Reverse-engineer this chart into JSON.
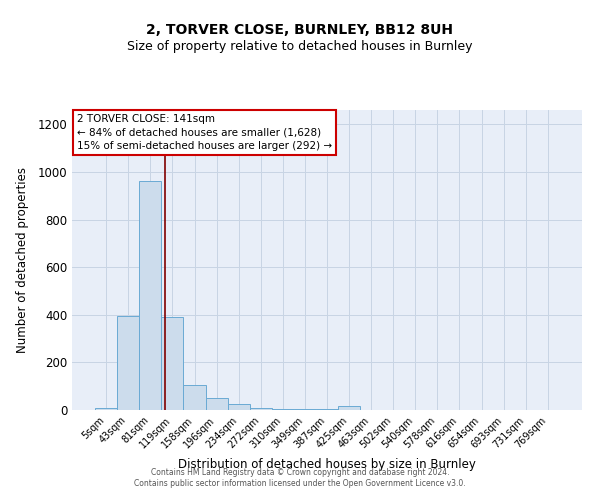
{
  "title": "2, TORVER CLOSE, BURNLEY, BB12 8UH",
  "subtitle": "Size of property relative to detached houses in Burnley",
  "xlabel": "Distribution of detached houses by size in Burnley",
  "ylabel": "Number of detached properties",
  "categories": [
    "5sqm",
    "43sqm",
    "81sqm",
    "119sqm",
    "158sqm",
    "196sqm",
    "234sqm",
    "272sqm",
    "310sqm",
    "349sqm",
    "387sqm",
    "425sqm",
    "463sqm",
    "502sqm",
    "540sqm",
    "578sqm",
    "616sqm",
    "654sqm",
    "693sqm",
    "731sqm",
    "769sqm"
  ],
  "values": [
    10,
    395,
    960,
    390,
    107,
    50,
    25,
    10,
    5,
    5,
    5,
    15,
    0,
    0,
    0,
    0,
    0,
    0,
    0,
    0,
    0
  ],
  "bar_color": "#ccdcec",
  "bar_edge_color": "#6aaad4",
  "grid_color": "#c8d4e4",
  "bg_color": "#e8eef8",
  "annotation_text": "2 TORVER CLOSE: 141sqm\n← 84% of detached houses are smaller (1,628)\n15% of semi-detached houses are larger (292) →",
  "annotation_box_color": "white",
  "annotation_box_edge": "#cc0000",
  "vline_x": 2.67,
  "vline_color": "#800000",
  "ylim": [
    0,
    1260
  ],
  "yticks": [
    0,
    200,
    400,
    600,
    800,
    1000,
    1200
  ],
  "title_fontsize": 10,
  "subtitle_fontsize": 9,
  "footer": "Contains HM Land Registry data © Crown copyright and database right 2024.\nContains public sector information licensed under the Open Government Licence v3.0."
}
